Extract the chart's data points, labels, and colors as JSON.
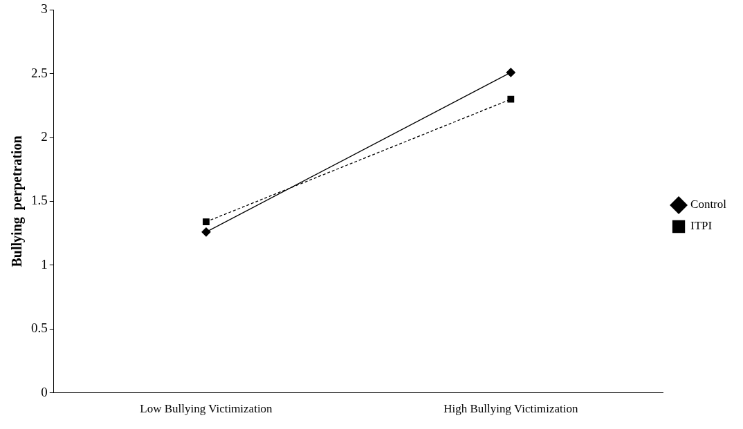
{
  "chart_data": {
    "type": "line",
    "ylabel": "Bullying  perpetration",
    "categories": [
      "Low Bullying Victimization",
      "High Bullying Victimization"
    ],
    "series": [
      {
        "name": "Control",
        "color": "#000000",
        "values": [
          1.26,
          2.51
        ],
        "marker": "diamond",
        "line_style": "solid"
      },
      {
        "name": "ITPI",
        "color": "#000000",
        "values": [
          1.34,
          2.3
        ],
        "marker": "square",
        "line_style": "dashed"
      }
    ],
    "ylim": [
      0,
      3
    ],
    "yticks": [
      0,
      0.5,
      1,
      1.5,
      2,
      2.5,
      3
    ],
    "grid": false,
    "legend": "right"
  }
}
